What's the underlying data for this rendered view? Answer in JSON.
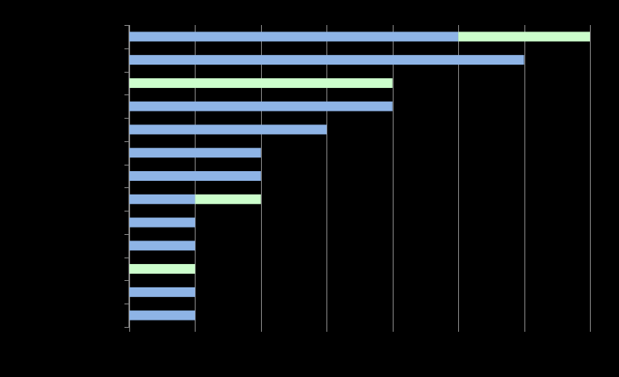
{
  "chart_data": {
    "type": "bar",
    "orientation": "horizontal",
    "stacked": true,
    "categories": [
      "",
      "",
      "",
      "",
      "",
      "",
      "",
      "",
      "",
      "",
      "",
      "",
      ""
    ],
    "series": [
      {
        "values": [
          5,
          6,
          0,
          4,
          3,
          2,
          2,
          1,
          1,
          1,
          0,
          1,
          1
        ],
        "color": "#8eb4e6"
      },
      {
        "values": [
          2,
          0,
          4,
          0,
          0,
          0,
          0,
          1,
          0,
          0,
          1,
          0,
          0
        ],
        "color": "#ccfecc"
      }
    ],
    "xlim": [
      0,
      7
    ],
    "xticks": [
      0,
      1,
      2,
      3,
      4,
      5,
      6,
      7
    ],
    "grid": true,
    "colors": {
      "background": "#000000",
      "grid": "#888888",
      "axis": "#888888"
    }
  }
}
